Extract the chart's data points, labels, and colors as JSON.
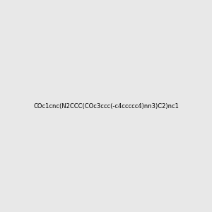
{
  "smiles": "COc1cnc(N2CCC(COc3ccc(-c4ccccc4)nn3)C2)nc1",
  "image_size": 300,
  "background_color": "#e8e8e8",
  "title": ""
}
